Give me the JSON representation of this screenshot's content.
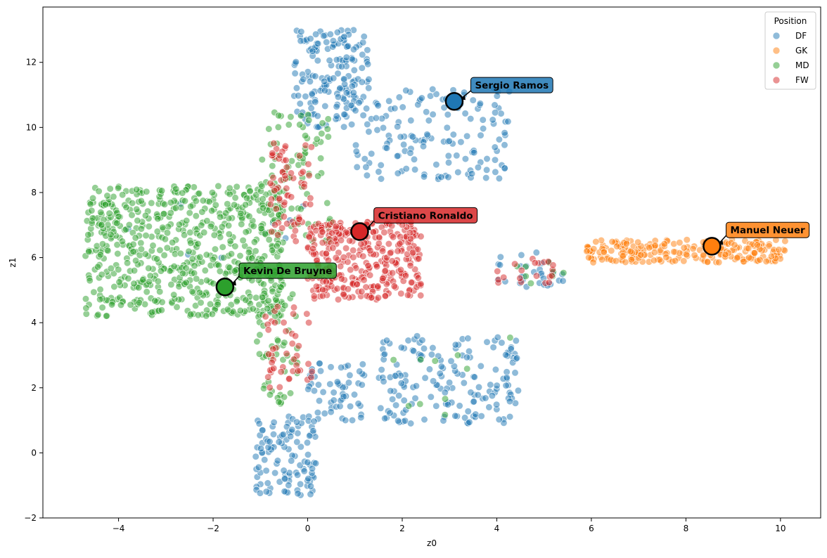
{
  "chart_data": {
    "type": "scatter",
    "title": "",
    "xlabel": "z0",
    "ylabel": "z1",
    "xlim": [
      -5.6,
      10.85
    ],
    "ylim": [
      -2,
      13.7
    ],
    "x_ticks": [
      -4,
      -2,
      0,
      2,
      4,
      6,
      8,
      10
    ],
    "y_ticks": [
      -2,
      0,
      2,
      4,
      6,
      8,
      10,
      12
    ],
    "grid": false,
    "legend": {
      "title": "Position",
      "placement": "top-right",
      "entries": [
        "DF",
        "GK",
        "MD",
        "FW"
      ]
    },
    "colors": {
      "DF": "#1f77b4",
      "GK": "#ff7f0e",
      "MD": "#2ca02c",
      "FW": "#d62728"
    },
    "clusters": [
      {
        "series": "DF",
        "x": [
          -0.3,
          1.3
        ],
        "y": [
          10.0,
          13.0
        ],
        "n": 170
      },
      {
        "series": "DF",
        "x": [
          1.0,
          4.3
        ],
        "y": [
          8.4,
          11.2
        ],
        "n": 150
      },
      {
        "series": "DF",
        "x": [
          -1.1,
          0.2
        ],
        "y": [
          -1.3,
          1.2
        ],
        "n": 110
      },
      {
        "series": "DF",
        "x": [
          0.0,
          1.2
        ],
        "y": [
          0.9,
          2.8
        ],
        "n": 60
      },
      {
        "series": "DF",
        "x": [
          1.5,
          4.5
        ],
        "y": [
          0.9,
          3.6
        ],
        "n": 170
      },
      {
        "series": "DF",
        "x": [
          3.9,
          5.4
        ],
        "y": [
          5.1,
          6.2
        ],
        "n": 30
      },
      {
        "series": "DF",
        "x": [
          -4.5,
          0.8
        ],
        "y": [
          4.3,
          8.0
        ],
        "n": 10
      },
      {
        "series": "MD",
        "x": [
          -4.7,
          -0.5
        ],
        "y": [
          4.2,
          8.2
        ],
        "n": 650
      },
      {
        "series": "MD",
        "x": [
          -1.0,
          0.5
        ],
        "y": [
          6.5,
          10.5
        ],
        "n": 80
      },
      {
        "series": "MD",
        "x": [
          -1.1,
          -0.2
        ],
        "y": [
          1.5,
          5.2
        ],
        "n": 60
      },
      {
        "series": "MD",
        "x": [
          3.9,
          5.5
        ],
        "y": [
          5.2,
          5.9
        ],
        "n": 8
      },
      {
        "series": "MD",
        "x": [
          1.5,
          4.5
        ],
        "y": [
          0.9,
          3.8
        ],
        "n": 10
      },
      {
        "series": "FW",
        "x": [
          0.0,
          2.4
        ],
        "y": [
          4.7,
          7.1
        ],
        "n": 330
      },
      {
        "series": "FW",
        "x": [
          -0.8,
          0.1
        ],
        "y": [
          6.5,
          9.6
        ],
        "n": 70
      },
      {
        "series": "FW",
        "x": [
          -0.9,
          0.1
        ],
        "y": [
          2.0,
          4.5
        ],
        "n": 45
      },
      {
        "series": "FW",
        "x": [
          4.0,
          5.2
        ],
        "y": [
          5.2,
          6.0
        ],
        "n": 20
      },
      {
        "series": "GK",
        "x": [
          5.9,
          10.1
        ],
        "y": [
          5.85,
          6.55
        ],
        "n": 230
      }
    ],
    "highlights": [
      {
        "name": "Sergio Ramos",
        "series": "DF",
        "x": 3.1,
        "y": 10.8,
        "label_x": 3.45,
        "label_y": 11.3
      },
      {
        "name": "Cristiano Ronaldo",
        "series": "FW",
        "x": 1.1,
        "y": 6.8,
        "label_x": 1.4,
        "label_y": 7.3
      },
      {
        "name": "Manuel Neuer",
        "series": "GK",
        "x": 8.55,
        "y": 6.35,
        "label_x": 8.85,
        "label_y": 6.85
      },
      {
        "name": "Kevin De Bruyne",
        "series": "MD",
        "x": -1.75,
        "y": 5.1,
        "label_x": -1.45,
        "label_y": 5.6
      }
    ]
  }
}
